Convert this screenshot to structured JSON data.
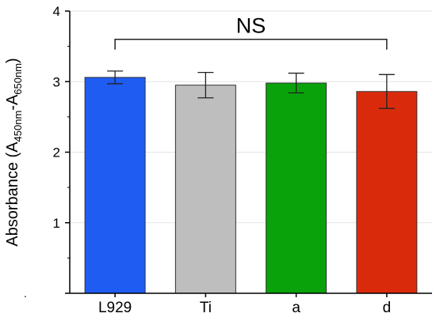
{
  "chart_data": {
    "type": "bar",
    "categories": [
      "L929",
      "Ti",
      "a",
      "d"
    ],
    "values": [
      3.06,
      2.95,
      2.98,
      2.86
    ],
    "errors": [
      0.09,
      0.18,
      0.14,
      0.24
    ],
    "colors": [
      "#1f5cf2",
      "#bebebe",
      "#0aa20a",
      "#d92b0c"
    ],
    "ylim": [
      0,
      4
    ],
    "yticks": [
      0,
      1,
      2,
      3,
      4
    ],
    "ytick_labels": [
      "",
      "1",
      "2",
      "3",
      "4"
    ],
    "ylabel": {
      "prefix": "Absorbance (A",
      "sub1": "450nm",
      "mid": "-A",
      "sub2": "650nm",
      "suffix": ")"
    },
    "annotation": {
      "text": "NS",
      "span": [
        "L929",
        "d"
      ],
      "y": 3.6
    },
    "grid": true,
    "corner_mark": "."
  }
}
